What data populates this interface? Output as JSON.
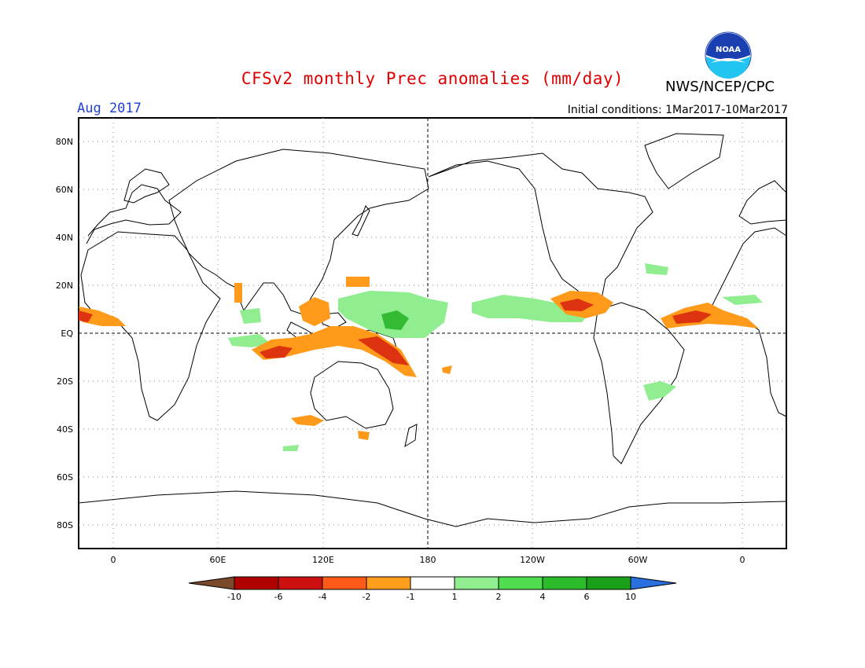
{
  "title": "CFSv2 monthly Prec anomalies (mm/day)",
  "agency": "NWS/NCEP/CPC",
  "logo_text": "NOAA",
  "valid_month": "Aug 2017",
  "initial_conditions": "Initial conditions: 1Mar2017-10Mar2017",
  "lat_labels": [
    "80N",
    "60N",
    "40N",
    "20N",
    "EQ",
    "20S",
    "40S",
    "60S",
    "80S"
  ],
  "lon_labels": [
    "0",
    "60E",
    "120E",
    "180",
    "120W",
    "60W",
    "0"
  ],
  "colorbar": {
    "labels": [
      "-10",
      "-6",
      "-4",
      "-2",
      "-1",
      "1",
      "2",
      "4",
      "6",
      "10"
    ],
    "colors": [
      "#7a4a2a",
      "#b00000",
      "#cc1010",
      "#ff5a1a",
      "#ff9e1a",
      "#ffffff",
      "#90ee90",
      "#50dd50",
      "#2bbb2b",
      "#18a018",
      "#2a6fe0"
    ]
  },
  "colors": {
    "title": "#e00000",
    "month": "#1f3fd8",
    "dry_strong": "#dd3311",
    "dry": "#ff9a1a",
    "wet": "#90ee90",
    "wet_strong": "#33bb33"
  }
}
